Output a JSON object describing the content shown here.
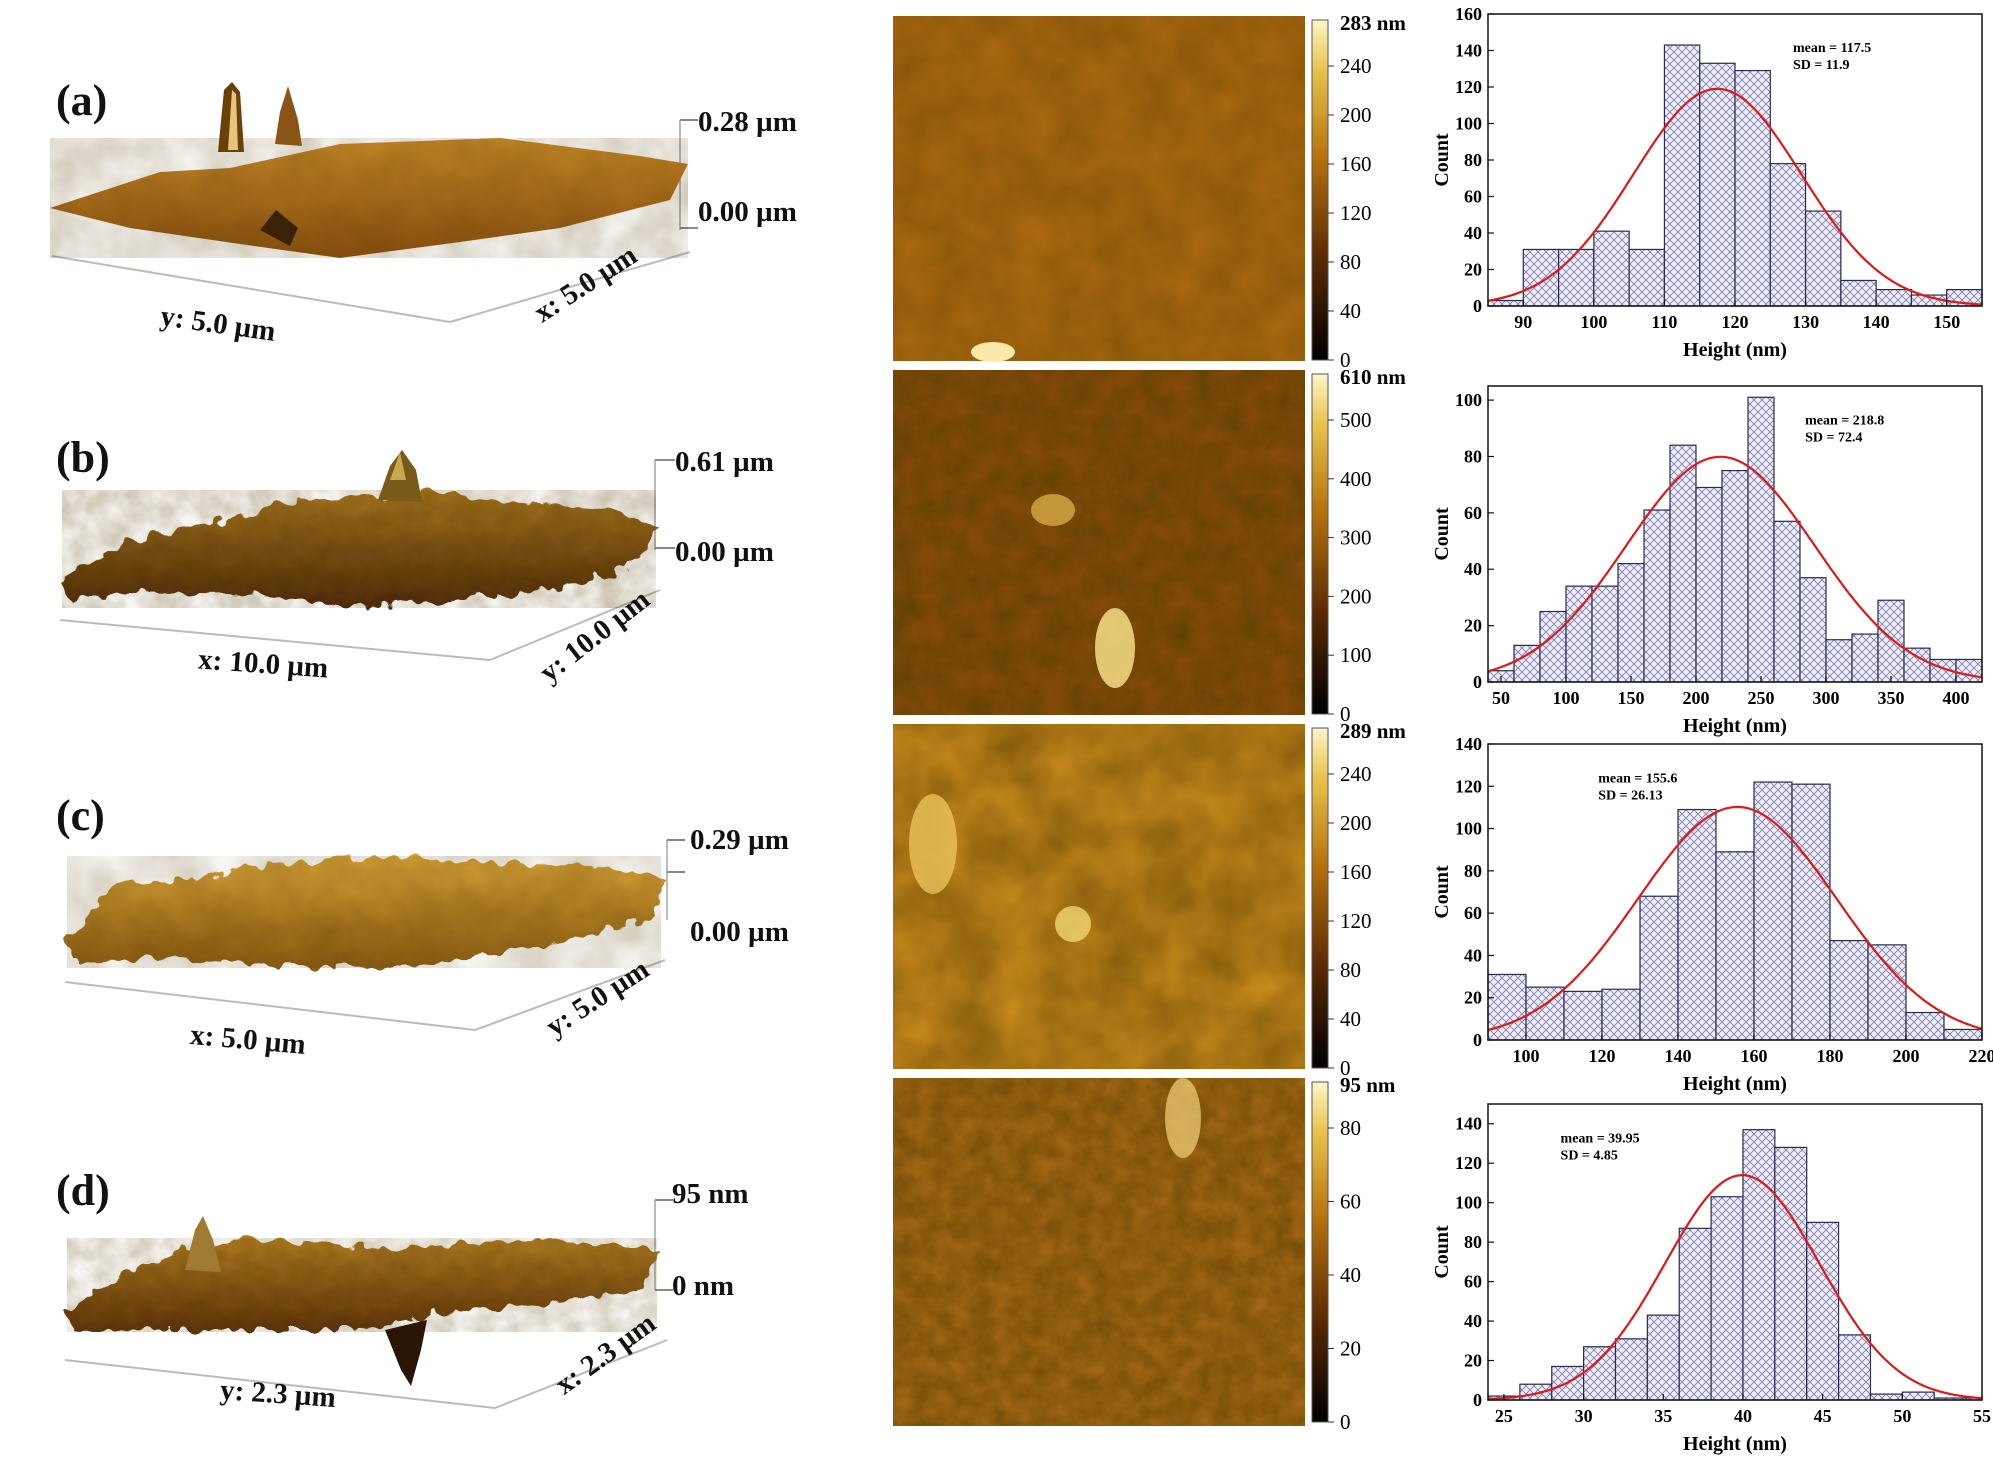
{
  "colors": {
    "afm_dark": "#1a0a00",
    "afm_mid": "#8a4a08",
    "afm_light": "#f6e7a0",
    "hist_edge": "#2a2a55",
    "hist_fill": "#eeeef8",
    "fit": "#e01818"
  },
  "panels": [
    {
      "label": "(a)",
      "z_max": "0.28 µm",
      "z_min": "0.00 µm",
      "axis_left": "y: 5.0 µm",
      "axis_right": "x: 5.0 µm",
      "colorbar": {
        "top": "283 nm",
        "ticks": [
          "240",
          "200",
          "160",
          "120",
          "80",
          "40",
          "0"
        ]
      }
    },
    {
      "label": "(b)",
      "z_max": "0.61 µm",
      "z_min": "0.00 µm",
      "axis_left": "x: 10.0 µm",
      "axis_right": "y: 10.0 µm",
      "colorbar": {
        "top": "610 nm",
        "ticks": [
          "500",
          "400",
          "300",
          "200",
          "100",
          "0"
        ]
      }
    },
    {
      "label": "(c)",
      "z_max": "0.29 µm",
      "z_min": "0.00 µm",
      "axis_left": "x: 5.0 µm",
      "axis_right": "y: 5.0 µm",
      "colorbar": {
        "top": "289 nm",
        "ticks": [
          "240",
          "200",
          "160",
          "120",
          "80",
          "40",
          "0"
        ]
      }
    },
    {
      "label": "(d)",
      "z_max": "95 nm",
      "z_min": "0 nm",
      "axis_left": "y: 2.3 µm",
      "axis_right": "x: 2.3 µm",
      "colorbar": {
        "top": "95 nm",
        "ticks": [
          "80",
          "60",
          "40",
          "20",
          "0"
        ]
      }
    }
  ],
  "chart_data": [
    {
      "type": "bar",
      "title": "",
      "xlabel": "Height (nm)",
      "ylabel": "Count",
      "xlim": [
        85,
        155
      ],
      "ylim": [
        0,
        160
      ],
      "xticks": [
        90,
        100,
        110,
        120,
        130,
        140,
        150
      ],
      "yticks": [
        0,
        20,
        40,
        60,
        80,
        100,
        120,
        140,
        160
      ],
      "bin_edges": [
        85,
        90,
        95,
        100,
        105,
        110,
        115,
        120,
        125,
        130,
        135,
        140,
        145,
        150,
        155
      ],
      "bin_edges_are_centers": false,
      "values": [
        3,
        31,
        31,
        41,
        31,
        143,
        133,
        129,
        78,
        52,
        14,
        9,
        6,
        9
      ],
      "mean": 117.5,
      "sd": 11.9,
      "annotation": [
        "mean = 117.5",
        "SD = 11.9"
      ],
      "annotation_pos": "top-right"
    },
    {
      "type": "bar",
      "title": "",
      "xlabel": "Height (nm)",
      "ylabel": "Count",
      "xlim": [
        40,
        420
      ],
      "ylim": [
        0,
        105
      ],
      "xticks": [
        50,
        100,
        150,
        200,
        250,
        300,
        350,
        400
      ],
      "yticks": [
        0,
        20,
        40,
        60,
        80,
        100
      ],
      "bin_edges": [
        40,
        60,
        80,
        100,
        120,
        140,
        160,
        180,
        200,
        220,
        240,
        260,
        280,
        300,
        320,
        340,
        360,
        380,
        400,
        420
      ],
      "values": [
        4,
        13,
        25,
        34,
        34,
        42,
        61,
        84,
        69,
        75,
        101,
        57,
        37,
        15,
        17,
        29,
        12,
        8,
        8
      ],
      "mean": 218.8,
      "sd": 72.4,
      "annotation": [
        "mean = 218.8",
        "SD = 72.4"
      ],
      "annotation_pos": "top-right"
    },
    {
      "type": "bar",
      "title": "",
      "xlabel": "Height (nm)",
      "ylabel": "Count",
      "xlim": [
        90,
        220
      ],
      "ylim": [
        0,
        140
      ],
      "xticks": [
        100,
        120,
        140,
        160,
        180,
        200,
        220
      ],
      "yticks": [
        0,
        20,
        40,
        60,
        80,
        100,
        120,
        140
      ],
      "bin_edges": [
        90,
        100,
        110,
        120,
        130,
        140,
        150,
        160,
        170,
        180,
        190,
        200,
        210,
        220
      ],
      "values": [
        31,
        25,
        23,
        24,
        68,
        109,
        89,
        122,
        121,
        47,
        45,
        13,
        5
      ],
      "mean": 155.6,
      "sd": 26.13,
      "annotation": [
        "mean = 155.6",
        "SD = 26.13"
      ],
      "annotation_pos": "top-center"
    },
    {
      "type": "bar",
      "title": "",
      "xlabel": "Height (nm)",
      "ylabel": "Count",
      "xlim": [
        24,
        55
      ],
      "ylim": [
        0,
        150
      ],
      "xticks": [
        25,
        30,
        35,
        40,
        45,
        50,
        55
      ],
      "yticks": [
        0,
        20,
        40,
        60,
        80,
        100,
        120,
        140
      ],
      "bin_edges": [
        24,
        26,
        28,
        30,
        32,
        34,
        36,
        38,
        40,
        42,
        44,
        46,
        48,
        50,
        52,
        54,
        55
      ],
      "values": [
        2,
        8,
        17,
        27,
        31,
        43,
        87,
        103,
        137,
        128,
        90,
        33,
        3,
        4,
        1,
        1
      ],
      "mean": 39.95,
      "sd": 4.85,
      "annotation": [
        "mean = 39.95",
        "SD = 4.85"
      ],
      "annotation_pos": "top-left"
    }
  ]
}
